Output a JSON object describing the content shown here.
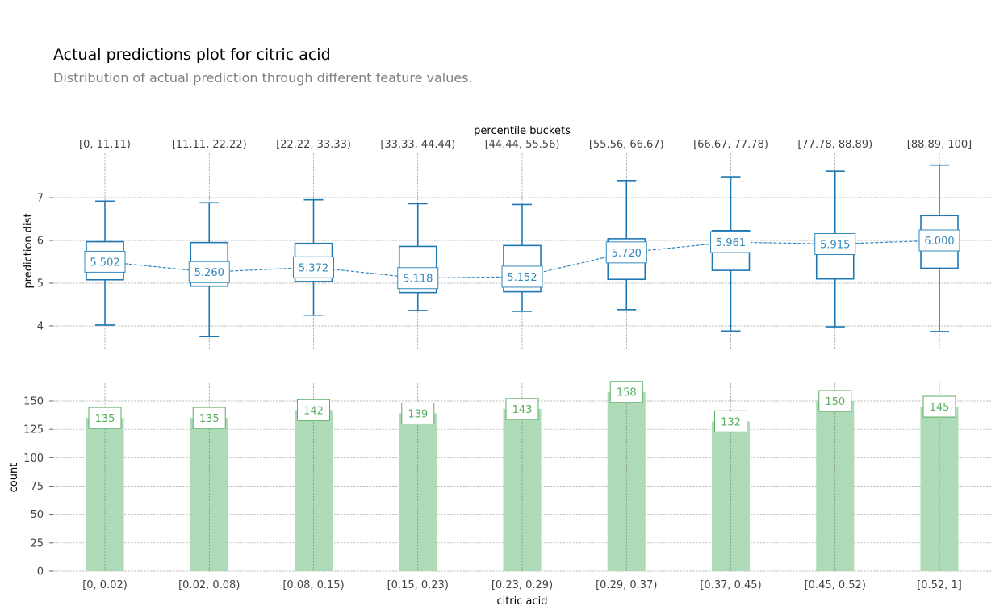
{
  "title": "Actual predictions plot for citric acid",
  "subtitle": "Distribution of actual prediction through different feature values.",
  "colors": {
    "box": "#1f77b4",
    "box_label": "#3288bd",
    "bar": "#addbb8",
    "bar_label": "#5aae61",
    "grid": "#a8a8a8",
    "tick_text": "#424242"
  },
  "chart_data": [
    {
      "type": "box",
      "title": "",
      "xlabel_top": "percentile buckets",
      "ylabel": "prediction dist",
      "categories_top": [
        "[0, 11.11)",
        "[11.11, 22.22)",
        "[22.22, 33.33)",
        "[33.33, 44.44)",
        "[44.44, 55.56)",
        "[55.56, 66.67)",
        "[66.67, 77.78)",
        "[77.78, 88.89)",
        "[88.89, 100]"
      ],
      "yticks": [
        4,
        5,
        6,
        7
      ],
      "ylim": [
        3.45,
        7.95
      ],
      "boxes": [
        {
          "whisker_low": 4.02,
          "q1": 5.08,
          "q3": 5.97,
          "whisker_high": 6.92
        },
        {
          "whisker_low": 3.75,
          "q1": 4.93,
          "q3": 5.95,
          "whisker_high": 6.88
        },
        {
          "whisker_low": 4.25,
          "q1": 5.04,
          "q3": 5.93,
          "whisker_high": 6.95
        },
        {
          "whisker_low": 4.36,
          "q1": 4.78,
          "q3": 5.86,
          "whisker_high": 6.86
        },
        {
          "whisker_low": 4.34,
          "q1": 4.8,
          "q3": 5.88,
          "whisker_high": 6.84
        },
        {
          "whisker_low": 4.38,
          "q1": 5.09,
          "q3": 6.04,
          "whisker_high": 7.4
        },
        {
          "whisker_low": 3.88,
          "q1": 5.3,
          "q3": 6.23,
          "whisker_high": 7.49
        },
        {
          "whisker_low": 3.98,
          "q1": 5.1,
          "q3": 6.12,
          "whisker_high": 7.62
        },
        {
          "whisker_low": 3.87,
          "q1": 5.35,
          "q3": 6.58,
          "whisker_high": 7.76
        }
      ],
      "mean_values": [
        5.502,
        5.26,
        5.372,
        5.118,
        5.152,
        5.72,
        5.961,
        5.915,
        6.0
      ],
      "mean_labels": [
        "5.502",
        "5.260",
        "5.372",
        "5.118",
        "5.152",
        "5.720",
        "5.961",
        "5.915",
        "6.000"
      ]
    },
    {
      "type": "bar",
      "title": "",
      "xlabel": "citric acid",
      "ylabel": "count",
      "categories": [
        "[0, 0.02)",
        "[0.02, 0.08)",
        "[0.08, 0.15)",
        "[0.15, 0.23)",
        "[0.23, 0.29)",
        "[0.29, 0.37)",
        "[0.37, 0.45)",
        "[0.45, 0.52)",
        "[0.52, 1]"
      ],
      "values": [
        135,
        135,
        142,
        139,
        143,
        158,
        132,
        150,
        145
      ],
      "value_labels": [
        "135",
        "135",
        "142",
        "139",
        "143",
        "158",
        "132",
        "150",
        "145"
      ],
      "yticks": [
        0,
        25,
        50,
        75,
        100,
        125,
        150
      ],
      "ytick_labels": [
        "0",
        "25",
        "50",
        "75",
        "100",
        "125",
        "150"
      ],
      "ylim": [
        0,
        166
      ]
    }
  ]
}
